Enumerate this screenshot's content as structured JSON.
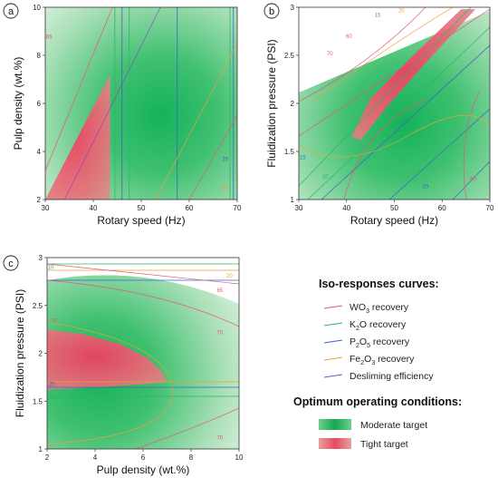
{
  "colors": {
    "wo3": "#e05a7a",
    "k2o": "#2bb56a",
    "p2o5": "#3a64c8",
    "fe2o3": "#e8a23a",
    "desliming": "#8a4fb8",
    "moderate": "#1fb25a",
    "tight": "#ee4e66"
  },
  "legend": {
    "iso_title": "Iso-responses curves:",
    "iso_items": [
      {
        "key": "wo3",
        "pre": "WO",
        "sub": "3",
        "post": " recovery"
      },
      {
        "key": "k2o",
        "pre": "K",
        "sub": "2",
        "post": "O recovery"
      },
      {
        "key": "p2o5",
        "pre": "P",
        "sub": "2",
        "post": "O",
        "sub2": "5",
        "post2": " recovery"
      },
      {
        "key": "fe2o3",
        "pre": "Fe",
        "sub": "2",
        "post": "O",
        "sub2": "3",
        "post2": " recovery"
      },
      {
        "key": "desliming",
        "pre": "Desliming efficiency",
        "sub": "",
        "post": ""
      }
    ],
    "opt_title": "Optimum operating conditions:",
    "opt_items": [
      {
        "key": "moderate",
        "label": "Moderate target"
      },
      {
        "key": "tight",
        "label": "Tight target"
      }
    ]
  },
  "chart_data": [
    {
      "panel": "a",
      "type": "heatmap",
      "xlabel": "Rotary speed (Hz)",
      "ylabel": "Pulp density (wt.%)",
      "xlim": [
        30,
        70
      ],
      "ylim": [
        2,
        10
      ],
      "xticks": [
        30,
        40,
        50,
        60,
        70
      ],
      "yticks": [
        2,
        4,
        6,
        8,
        10
      ],
      "moderate_optimum_center": {
        "x": 54,
        "y": 5.5
      },
      "tight_region_polygon": [
        [
          30,
          2
        ],
        [
          43.5,
          2
        ],
        [
          43.5,
          7.2
        ]
      ],
      "contour_labels": [
        {
          "key": "wo3",
          "text": "65",
          "x": 30.8,
          "y": 8.7
        },
        {
          "key": "p2o5",
          "text": "20",
          "x": 67.5,
          "y": 3.6
        },
        {
          "key": "fe2o3",
          "text": "90",
          "x": 67.2,
          "y": 2.4
        }
      ],
      "vertical_isolines": [
        {
          "key": "k2o",
          "x": 44.5
        },
        {
          "key": "p2o5",
          "x": 46.0
        },
        {
          "key": "k2o",
          "x": 47.5
        },
        {
          "key": "p2o5",
          "x": 57.5
        },
        {
          "key": "k2o",
          "x": 68.5
        },
        {
          "key": "p2o5",
          "x": 69.2
        }
      ],
      "diagonal_isolines": [
        {
          "key": "wo3",
          "x1": 30,
          "y1": 3.2,
          "x2": 44,
          "y2": 10
        },
        {
          "key": "desliming",
          "x1": 34,
          "y1": 2,
          "x2": 54,
          "y2": 10
        },
        {
          "key": "fe2o3",
          "x1": 53,
          "y1": 2,
          "x2": 70,
          "y2": 8.5
        },
        {
          "key": "wo3",
          "x1": 60,
          "y1": 2,
          "x2": 70,
          "y2": 5.5
        }
      ]
    },
    {
      "panel": "b",
      "type": "heatmap",
      "xlabel": "Rotary speed (Hz)",
      "ylabel": "Fluidization pressure (PSI)",
      "xlim": [
        30,
        70
      ],
      "ylim": [
        1,
        3
      ],
      "xticks": [
        30,
        40,
        50,
        60,
        70
      ],
      "yticks": [
        1,
        1.5,
        2,
        2.5,
        3
      ],
      "moderate_optimum_center": {
        "x": 52,
        "y": 1.8
      },
      "tight_region_polygon": [
        [
          41,
          1.65
        ],
        [
          45,
          2.05
        ],
        [
          55,
          2.55
        ],
        [
          64,
          2.98
        ],
        [
          67,
          2.98
        ],
        [
          58,
          2.5
        ],
        [
          49,
          2.0
        ],
        [
          43,
          1.62
        ]
      ],
      "contour_labels": [
        {
          "key": "wo3",
          "text": "60",
          "x": 40.5,
          "y": 2.68
        },
        {
          "key": "wo3",
          "text": "70",
          "x": 36.5,
          "y": 2.5
        },
        {
          "key": "k2o",
          "text": "15",
          "x": 46.5,
          "y": 2.9
        },
        {
          "key": "fe2o3",
          "text": "20",
          "x": 51.5,
          "y": 2.95
        },
        {
          "key": "k2o",
          "text": "10",
          "x": 35.5,
          "y": 1.22
        },
        {
          "key": "p2o5",
          "text": "15",
          "x": 30.8,
          "y": 1.42
        },
        {
          "key": "p2o5",
          "text": "20",
          "x": 56.5,
          "y": 1.12
        },
        {
          "key": "wo3",
          "text": "60",
          "x": 66.5,
          "y": 1.2
        }
      ]
    },
    {
      "panel": "c",
      "type": "heatmap",
      "xlabel": "Pulp density (wt.%)",
      "ylabel": "Fluidization pressure (PSI)",
      "xlim": [
        2,
        10
      ],
      "ylim": [
        1,
        3
      ],
      "xticks": [
        2,
        4,
        6,
        8,
        10
      ],
      "yticks": [
        1,
        1.5,
        2,
        2.5,
        3
      ],
      "moderate_optimum_center": {
        "x": 4.2,
        "y": 1.75
      },
      "tight_region_polygon": [
        [
          2,
          1.62
        ],
        [
          2,
          2.25
        ],
        [
          3.5,
          2.2
        ],
        [
          5.0,
          2.1
        ],
        [
          6.2,
          1.95
        ],
        [
          6.8,
          1.8
        ],
        [
          7.0,
          1.7
        ],
        [
          6.2,
          1.68
        ],
        [
          4.5,
          1.65
        ]
      ],
      "contour_labels": [
        {
          "key": "k2o",
          "text": "10",
          "x": 2.15,
          "y": 2.88
        },
        {
          "key": "fe2o3",
          "text": "20",
          "x": 9.6,
          "y": 2.79
        },
        {
          "key": "wo3",
          "text": "65",
          "x": 9.2,
          "y": 2.64
        },
        {
          "key": "wo3",
          "text": "70",
          "x": 9.2,
          "y": 2.2
        },
        {
          "key": "wo3",
          "text": "75",
          "x": 2.3,
          "y": 2.32
        },
        {
          "key": "p2o5",
          "text": "20",
          "x": 2.2,
          "y": 1.66
        },
        {
          "key": "k2o",
          "text": "15",
          "x": 2.2,
          "y": 1.52
        },
        {
          "key": "wo3",
          "text": "70",
          "x": 9.2,
          "y": 1.1
        }
      ]
    }
  ]
}
